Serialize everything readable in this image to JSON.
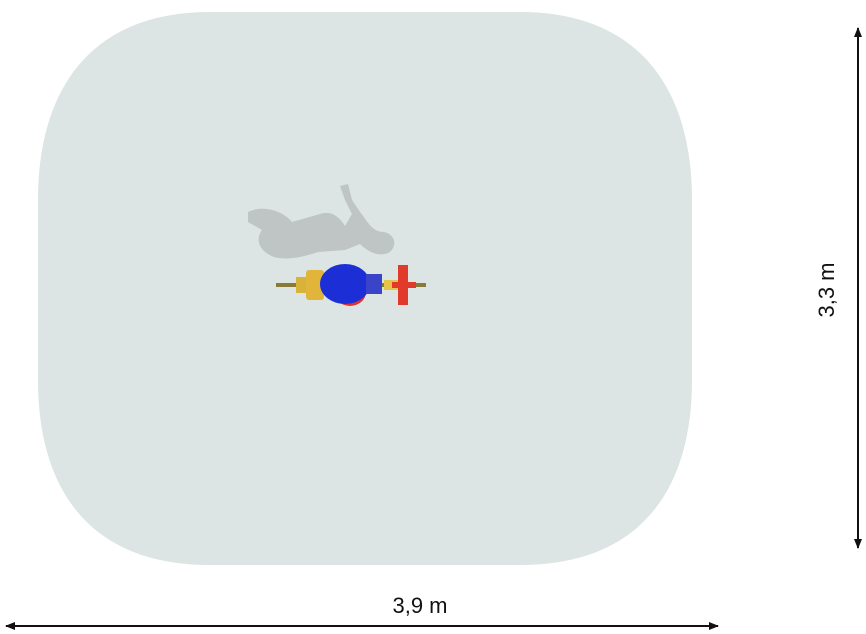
{
  "dimensions": {
    "width": "3,9 m",
    "depth": "3,3 m"
  }
}
